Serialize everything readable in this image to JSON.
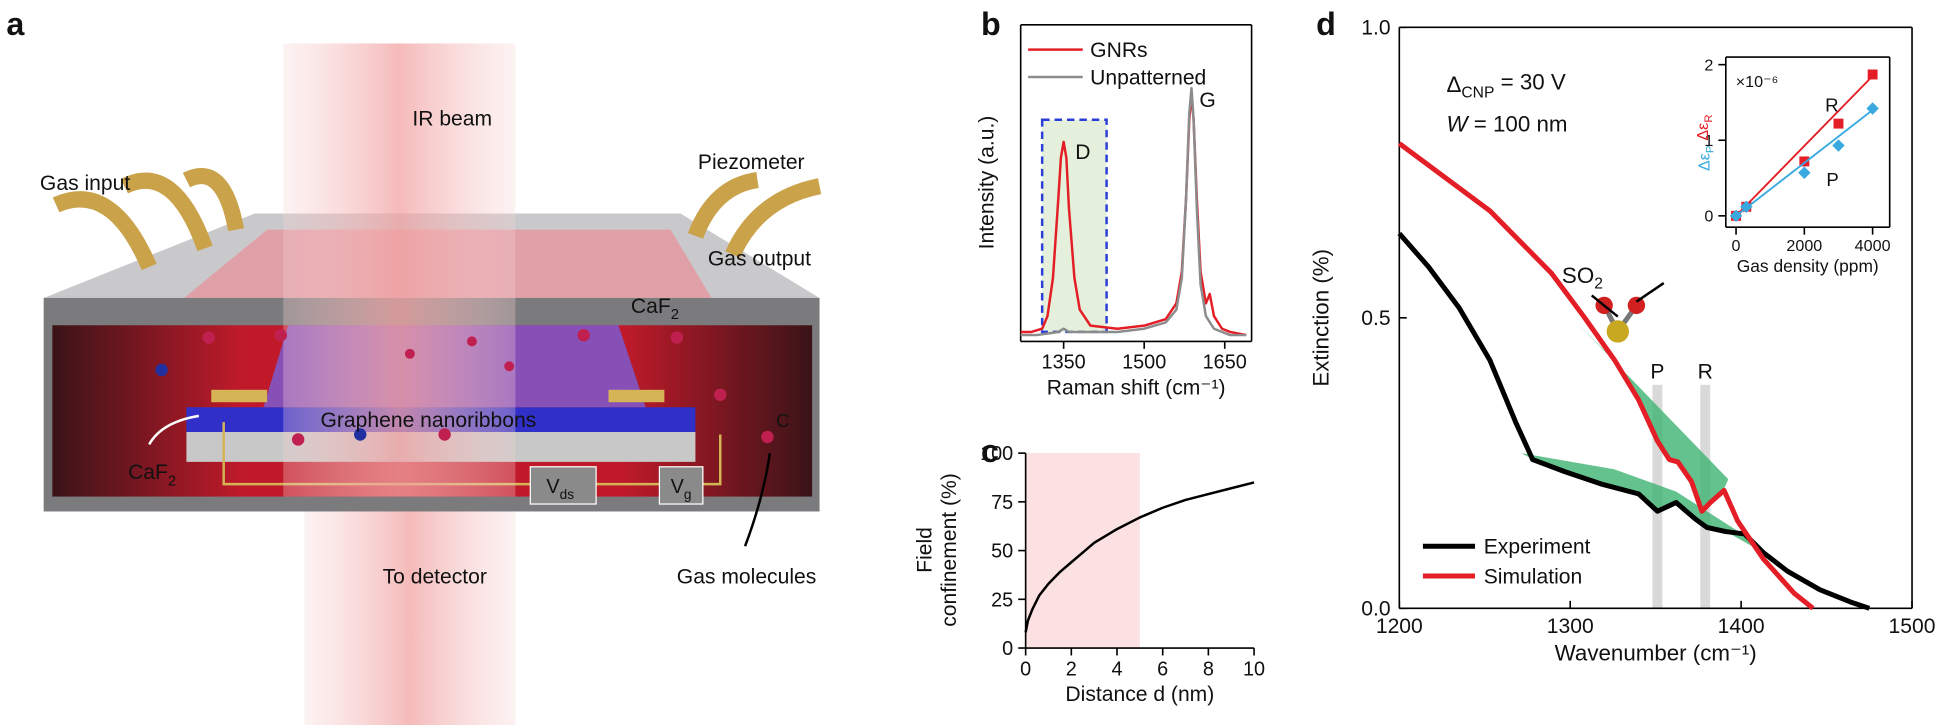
{
  "panel_labels": [
    "a",
    "b",
    "c",
    "d"
  ],
  "schematic": {
    "ir_beam": "IR beam",
    "gas_input": "Gas input",
    "piezometer": "Piezometer",
    "gas_output": "Gas output",
    "caf2_top": {
      "text": "CaF",
      "sub": "2"
    },
    "nanoribbons": "Graphene nanoribbons",
    "caf2_left": {
      "text": "CaF",
      "sub": "2"
    },
    "vds": {
      "text": "V",
      "sub": "ds"
    },
    "vg": {
      "text": "V",
      "sub": "g"
    },
    "to_detector": "To detector",
    "gas_molecules": "Gas molecules",
    "c_label": "C"
  },
  "chart_data": [
    {
      "type": "line",
      "xlabel": "Raman shift (cm⁻¹)",
      "ylabel": "Intensity (a.u.)",
      "xlim": [
        1270,
        1700
      ],
      "xticks": [
        1350,
        1500,
        1650
      ],
      "ylim": [
        0,
        1
      ],
      "highlight": {
        "xlim": [
          1310,
          1430
        ],
        "ylim": [
          0.03,
          0.7
        ],
        "color": "#2b3fd6"
      },
      "peak_labels": [
        "D",
        "G"
      ],
      "legend": "upper left",
      "series": [
        {
          "name": "GNRs",
          "color": "#e41e26",
          "x": [
            1270,
            1290,
            1310,
            1320,
            1330,
            1340,
            1345,
            1350,
            1355,
            1360,
            1370,
            1380,
            1400,
            1450,
            1500,
            1540,
            1560,
            1570,
            1578,
            1584,
            1588,
            1592,
            1598,
            1605,
            1615,
            1622,
            1630,
            1645,
            1660,
            1690
          ],
          "values": [
            0.03,
            0.03,
            0.04,
            0.08,
            0.2,
            0.45,
            0.58,
            0.63,
            0.58,
            0.42,
            0.2,
            0.1,
            0.05,
            0.04,
            0.05,
            0.07,
            0.12,
            0.22,
            0.45,
            0.7,
            0.78,
            0.7,
            0.45,
            0.22,
            0.12,
            0.15,
            0.08,
            0.04,
            0.03,
            0.02
          ]
        },
        {
          "name": "Unpatterned",
          "color": "#8c8c8c",
          "x": [
            1270,
            1300,
            1340,
            1350,
            1360,
            1400,
            1450,
            1500,
            1540,
            1560,
            1570,
            1578,
            1584,
            1588,
            1592,
            1598,
            1605,
            1615,
            1630,
            1660,
            1690
          ],
          "values": [
            0.02,
            0.02,
            0.03,
            0.04,
            0.03,
            0.03,
            0.03,
            0.04,
            0.06,
            0.1,
            0.2,
            0.45,
            0.72,
            0.8,
            0.7,
            0.42,
            0.18,
            0.08,
            0.04,
            0.02,
            0.02
          ]
        }
      ]
    },
    {
      "type": "line",
      "xlabel": "Distance d (nm)",
      "ylabel": [
        "Field",
        "confinement (%)"
      ],
      "xlim": [
        0,
        10
      ],
      "xticks": [
        0,
        2,
        4,
        6,
        8,
        10
      ],
      "ylim": [
        0,
        100
      ],
      "yticks": [
        0,
        25,
        50,
        75,
        100
      ],
      "shade": [
        0,
        5
      ],
      "series": [
        {
          "color": "#000000",
          "x": [
            0,
            0.1,
            0.3,
            0.6,
            1,
            1.5,
            2,
            2.5,
            3,
            4,
            5,
            6,
            7,
            8,
            9,
            10
          ],
          "values": [
            8,
            14,
            20,
            27,
            33,
            39,
            44,
            49,
            54,
            61,
            67,
            72,
            76,
            79,
            82,
            85
          ]
        }
      ]
    },
    {
      "type": "line",
      "xlabel": "Wavenumber (cm⁻¹)",
      "ylabel": "Extinction (%)",
      "xlim": [
        1200,
        1500
      ],
      "xticks": [
        1200,
        1300,
        1400,
        1500
      ],
      "ylim": [
        0,
        1
      ],
      "yticks": [
        {
          "value": 0,
          "label": "0.0"
        },
        {
          "value": 0.5,
          "label": "0.5"
        },
        {
          "value": 1,
          "label": "1.0"
        }
      ],
      "legend": "lower left",
      "annotations": {
        "delta": {
          "text": "Δ",
          "sub": "CNP",
          "rest": " = 30 V"
        },
        "width": {
          "text": "W",
          "rest": " = 100 nm"
        },
        "molecule": {
          "text": "SO",
          "sub": "2"
        }
      },
      "bands": [
        {
          "label": "P",
          "x": 1351,
          "color": "#39a9e0"
        },
        {
          "label": "R",
          "x": 1379,
          "color": "#e41e26"
        }
      ],
      "series": [
        {
          "name": "Experiment",
          "color": "#000000",
          "x": [
            1200,
            1217,
            1235,
            1253,
            1268,
            1278,
            1297,
            1318,
            1340,
            1351,
            1362,
            1373,
            1380,
            1391,
            1402,
            1413,
            1427,
            1446,
            1464,
            1475
          ],
          "values": [
            0.645,
            0.588,
            0.517,
            0.427,
            0.321,
            0.256,
            0.235,
            0.214,
            0.197,
            0.167,
            0.182,
            0.154,
            0.139,
            0.132,
            0.128,
            0.096,
            0.064,
            0.032,
            0.011,
            0
          ]
        },
        {
          "name": "Simulation",
          "color": "#e41e26",
          "x": [
            1200,
            1253,
            1289,
            1308,
            1326,
            1340,
            1351,
            1358,
            1363,
            1371,
            1377,
            1382,
            1390,
            1398,
            1413,
            1431,
            1442
          ],
          "values": [
            0.8,
            0.684,
            0.577,
            0.502,
            0.427,
            0.359,
            0.288,
            0.256,
            0.252,
            0.218,
            0.167,
            0.182,
            0.203,
            0.15,
            0.085,
            0.026,
            0
          ]
        }
      ]
    },
    {
      "type": "scatter",
      "xlabel": "Gas density (ppm)",
      "ylabel": [
        {
          "text": "Δε",
          "sub": "P",
          "color": "#39a9e0"
        },
        {
          "text": "Δε",
          "sub": "R",
          "color": "#e41e26"
        }
      ],
      "multiplier": "×10⁻⁶",
      "xlim": [
        -300,
        4500
      ],
      "xticks": [
        0,
        2000,
        4000
      ],
      "ylim": [
        -0.15,
        2.1
      ],
      "yticks": [
        0,
        1,
        2
      ],
      "fit_x": [
        0,
        4000
      ],
      "series": [
        {
          "name": "R",
          "color": "#e41e26",
          "marker": "square",
          "x": [
            0,
            300,
            2000,
            3000,
            4000
          ],
          "values": [
            0,
            0.12,
            0.72,
            1.22,
            1.87
          ],
          "fit": [
            0,
            1.85
          ]
        },
        {
          "name": "P",
          "color": "#39a9e0",
          "marker": "diamond",
          "x": [
            0,
            300,
            2000,
            3000,
            4000
          ],
          "values": [
            0,
            0.12,
            0.57,
            0.93,
            1.42
          ],
          "fit": [
            0,
            1.4
          ]
        }
      ]
    }
  ]
}
